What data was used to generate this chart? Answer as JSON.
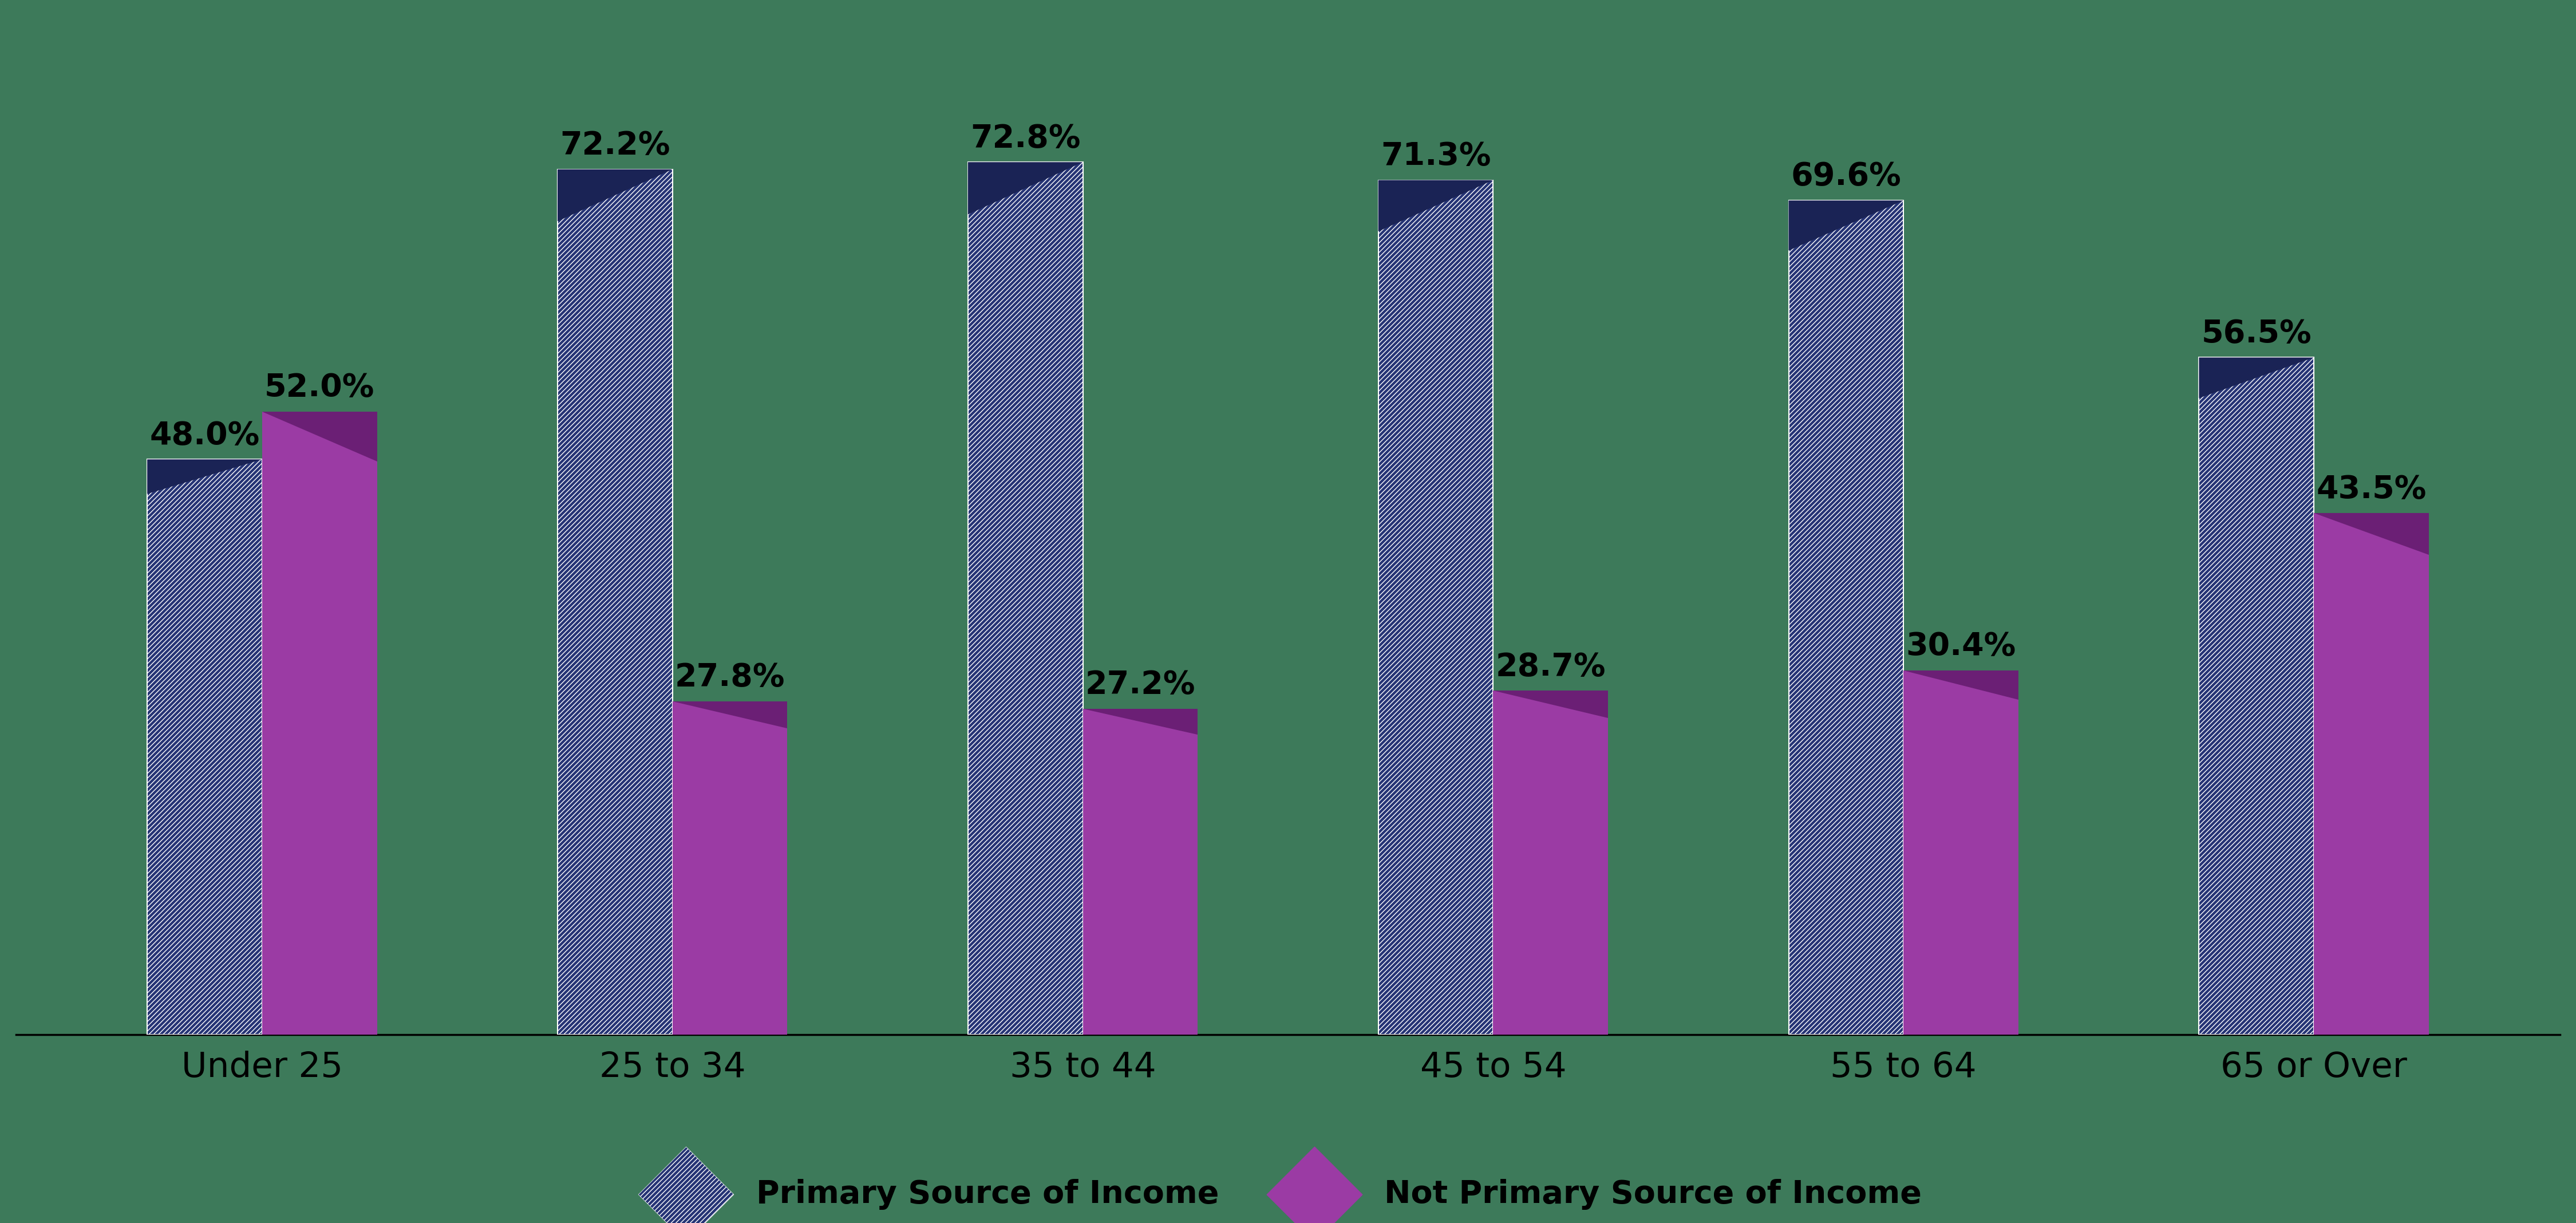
{
  "categories": [
    "Under 25",
    "25 to 34",
    "35 to 44",
    "45 to 54",
    "55 to 64",
    "65 or Over"
  ],
  "primary": [
    48.0,
    72.2,
    72.8,
    71.3,
    69.6,
    56.5
  ],
  "not_primary": [
    52.0,
    27.8,
    27.2,
    28.7,
    30.4,
    43.5
  ],
  "primary_color": "#263475",
  "primary_color_dark": "#1a2355",
  "not_primary_color": "#9B3BA4",
  "not_primary_color_dark": "#6B1F75",
  "background_color": "#3D7A5A",
  "bar_width": 0.28,
  "label_fontsize": 40,
  "tick_fontsize": 44,
  "legend_fontsize": 40,
  "legend_label_primary": "Primary Source of Income",
  "legend_label_not_primary": "Not Primary Source of Income",
  "hatch_pattern": "////",
  "ylim": [
    0,
    85
  ]
}
